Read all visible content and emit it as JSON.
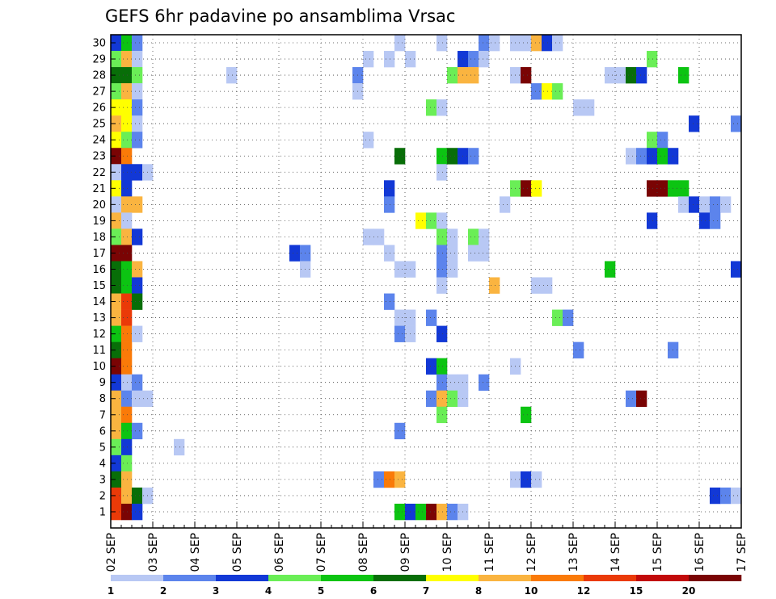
{
  "chart_data": {
    "type": "heatmap",
    "title": "GEFS 6hr padavine po ansamblima Vrsac",
    "xlabel": "",
    "ylabel": "",
    "x_ticks": [
      "02 SEP",
      "03 SEP",
      "04 SEP",
      "05 SEP",
      "06 SEP",
      "07 SEP",
      "08 SEP",
      "09 SEP",
      "10 SEP",
      "11 SEP",
      "12 SEP",
      "13 SEP",
      "14 SEP",
      "15 SEP",
      "16 SEP",
      "17 SEP"
    ],
    "x_unit": "6-hour step from 02 SEP 00Z",
    "x_range_steps": [
      0,
      60
    ],
    "y_ticks": [
      "1",
      "2",
      "3",
      "4",
      "5",
      "6",
      "7",
      "8",
      "9",
      "10",
      "11",
      "12",
      "13",
      "14",
      "15",
      "16",
      "17",
      "18",
      "19",
      "20",
      "21",
      "22",
      "23",
      "24",
      "25",
      "26",
      "27",
      "28",
      "29",
      "30"
    ],
    "y_range": [
      0,
      30
    ],
    "grid": true,
    "legend_placement": "bottom",
    "legend_labels": [
      "1",
      "2",
      "3",
      "4",
      "5",
      "6",
      "7",
      "8",
      "10",
      "12",
      "15",
      "20"
    ],
    "legend_colors": [
      "#b8c8f4",
      "#5c84ec",
      "#1238d6",
      "#6aee56",
      "#0cc412",
      "#086e08",
      "#ffff00",
      "#fab440",
      "#fa7a08",
      "#ea3a08",
      "#c20a0a",
      "#7a0404"
    ],
    "class_colors": [
      "#ffffff",
      "#b8c8f4",
      "#5c84ec",
      "#1238d6",
      "#6aee56",
      "#0cc412",
      "#086e08",
      "#ffff00",
      "#fab440",
      "#fa7a08",
      "#ea3a08",
      "#c20a0a",
      "#7a0404"
    ],
    "cells": [
      {
        "m": 30,
        "s": 0,
        "c": 3
      },
      {
        "m": 30,
        "s": 1,
        "c": 5
      },
      {
        "m": 30,
        "s": 2,
        "c": 2
      },
      {
        "m": 30,
        "s": 27,
        "c": 1
      },
      {
        "m": 30,
        "s": 31,
        "c": 1
      },
      {
        "m": 30,
        "s": 35,
        "c": 2
      },
      {
        "m": 30,
        "s": 36,
        "c": 1
      },
      {
        "m": 30,
        "s": 38,
        "c": 1
      },
      {
        "m": 30,
        "s": 39,
        "c": 1
      },
      {
        "m": 30,
        "s": 40,
        "c": 8
      },
      {
        "m": 30,
        "s": 41,
        "c": 3
      },
      {
        "m": 30,
        "s": 42,
        "c": 1
      },
      {
        "m": 29,
        "s": 0,
        "c": 4
      },
      {
        "m": 29,
        "s": 1,
        "c": 8
      },
      {
        "m": 29,
        "s": 2,
        "c": 1
      },
      {
        "m": 29,
        "s": 24,
        "c": 1
      },
      {
        "m": 29,
        "s": 26,
        "c": 1
      },
      {
        "m": 29,
        "s": 28,
        "c": 1
      },
      {
        "m": 29,
        "s": 33,
        "c": 3
      },
      {
        "m": 29,
        "s": 34,
        "c": 2
      },
      {
        "m": 29,
        "s": 35,
        "c": 1
      },
      {
        "m": 29,
        "s": 51,
        "c": 4
      },
      {
        "m": 28,
        "s": 0,
        "c": 6
      },
      {
        "m": 28,
        "s": 1,
        "c": 6
      },
      {
        "m": 28,
        "s": 2,
        "c": 4
      },
      {
        "m": 28,
        "s": 11,
        "c": 1
      },
      {
        "m": 28,
        "s": 23,
        "c": 2
      },
      {
        "m": 28,
        "s": 32,
        "c": 4
      },
      {
        "m": 28,
        "s": 33,
        "c": 8
      },
      {
        "m": 28,
        "s": 34,
        "c": 8
      },
      {
        "m": 28,
        "s": 38,
        "c": 1
      },
      {
        "m": 28,
        "s": 39,
        "c": 12
      },
      {
        "m": 28,
        "s": 47,
        "c": 1
      },
      {
        "m": 28,
        "s": 48,
        "c": 1
      },
      {
        "m": 28,
        "s": 49,
        "c": 6
      },
      {
        "m": 28,
        "s": 50,
        "c": 3
      },
      {
        "m": 28,
        "s": 54,
        "c": 5
      },
      {
        "m": 27,
        "s": 0,
        "c": 4
      },
      {
        "m": 27,
        "s": 1,
        "c": 8
      },
      {
        "m": 27,
        "s": 2,
        "c": 1
      },
      {
        "m": 27,
        "s": 23,
        "c": 1
      },
      {
        "m": 27,
        "s": 40,
        "c": 2
      },
      {
        "m": 27,
        "s": 41,
        "c": 7
      },
      {
        "m": 27,
        "s": 42,
        "c": 4
      },
      {
        "m": 26,
        "s": 0,
        "c": 7
      },
      {
        "m": 26,
        "s": 1,
        "c": 7
      },
      {
        "m": 26,
        "s": 2,
        "c": 2
      },
      {
        "m": 26,
        "s": 30,
        "c": 4
      },
      {
        "m": 26,
        "s": 31,
        "c": 1
      },
      {
        "m": 26,
        "s": 44,
        "c": 1
      },
      {
        "m": 26,
        "s": 45,
        "c": 1
      },
      {
        "m": 25,
        "s": 0,
        "c": 8
      },
      {
        "m": 25,
        "s": 1,
        "c": 7
      },
      {
        "m": 25,
        "s": 2,
        "c": 1
      },
      {
        "m": 25,
        "s": 55,
        "c": 3
      },
      {
        "m": 25,
        "s": 59,
        "c": 2
      },
      {
        "m": 25,
        "s": 60,
        "c": 1
      },
      {
        "m": 24,
        "s": 0,
        "c": 7
      },
      {
        "m": 24,
        "s": 1,
        "c": 4
      },
      {
        "m": 24,
        "s": 2,
        "c": 2
      },
      {
        "m": 24,
        "s": 24,
        "c": 1
      },
      {
        "m": 24,
        "s": 51,
        "c": 4
      },
      {
        "m": 24,
        "s": 52,
        "c": 2
      },
      {
        "m": 23,
        "s": 0,
        "c": 12
      },
      {
        "m": 23,
        "s": 1,
        "c": 9
      },
      {
        "m": 23,
        "s": 27,
        "c": 6
      },
      {
        "m": 23,
        "s": 31,
        "c": 5
      },
      {
        "m": 23,
        "s": 32,
        "c": 6
      },
      {
        "m": 23,
        "s": 33,
        "c": 3
      },
      {
        "m": 23,
        "s": 34,
        "c": 2
      },
      {
        "m": 23,
        "s": 49,
        "c": 1
      },
      {
        "m": 23,
        "s": 50,
        "c": 2
      },
      {
        "m": 23,
        "s": 51,
        "c": 3
      },
      {
        "m": 23,
        "s": 52,
        "c": 5
      },
      {
        "m": 23,
        "s": 53,
        "c": 3
      },
      {
        "m": 22,
        "s": 0,
        "c": 1
      },
      {
        "m": 22,
        "s": 1,
        "c": 3
      },
      {
        "m": 22,
        "s": 2,
        "c": 3
      },
      {
        "m": 22,
        "s": 3,
        "c": 1
      },
      {
        "m": 22,
        "s": 31,
        "c": 1
      },
      {
        "m": 21,
        "s": 0,
        "c": 7
      },
      {
        "m": 21,
        "s": 1,
        "c": 3
      },
      {
        "m": 21,
        "s": 26,
        "c": 3
      },
      {
        "m": 21,
        "s": 38,
        "c": 4
      },
      {
        "m": 21,
        "s": 39,
        "c": 12
      },
      {
        "m": 21,
        "s": 40,
        "c": 7
      },
      {
        "m": 21,
        "s": 51,
        "c": 12
      },
      {
        "m": 21,
        "s": 52,
        "c": 12
      },
      {
        "m": 21,
        "s": 53,
        "c": 5
      },
      {
        "m": 21,
        "s": 54,
        "c": 5
      },
      {
        "m": 20,
        "s": 0,
        "c": 1
      },
      {
        "m": 20,
        "s": 1,
        "c": 8
      },
      {
        "m": 20,
        "s": 2,
        "c": 8
      },
      {
        "m": 20,
        "s": 26,
        "c": 2
      },
      {
        "m": 20,
        "s": 37,
        "c": 1
      },
      {
        "m": 20,
        "s": 54,
        "c": 1
      },
      {
        "m": 20,
        "s": 55,
        "c": 3
      },
      {
        "m": 20,
        "s": 56,
        "c": 1
      },
      {
        "m": 20,
        "s": 57,
        "c": 2
      },
      {
        "m": 20,
        "s": 58,
        "c": 1
      },
      {
        "m": 19,
        "s": 0,
        "c": 8
      },
      {
        "m": 19,
        "s": 1,
        "c": 1
      },
      {
        "m": 19,
        "s": 29,
        "c": 7
      },
      {
        "m": 19,
        "s": 30,
        "c": 4
      },
      {
        "m": 19,
        "s": 31,
        "c": 1
      },
      {
        "m": 19,
        "s": 51,
        "c": 3
      },
      {
        "m": 19,
        "s": 56,
        "c": 3
      },
      {
        "m": 19,
        "s": 57,
        "c": 2
      },
      {
        "m": 18,
        "s": 0,
        "c": 4
      },
      {
        "m": 18,
        "s": 1,
        "c": 8
      },
      {
        "m": 18,
        "s": 2,
        "c": 3
      },
      {
        "m": 18,
        "s": 24,
        "c": 1
      },
      {
        "m": 18,
        "s": 25,
        "c": 1
      },
      {
        "m": 18,
        "s": 31,
        "c": 4
      },
      {
        "m": 18,
        "s": 32,
        "c": 1
      },
      {
        "m": 18,
        "s": 34,
        "c": 4
      },
      {
        "m": 18,
        "s": 35,
        "c": 1
      },
      {
        "m": 17,
        "s": 0,
        "c": 12
      },
      {
        "m": 17,
        "s": 1,
        "c": 12
      },
      {
        "m": 17,
        "s": 17,
        "c": 3
      },
      {
        "m": 17,
        "s": 18,
        "c": 2
      },
      {
        "m": 17,
        "s": 26,
        "c": 1
      },
      {
        "m": 17,
        "s": 31,
        "c": 2
      },
      {
        "m": 17,
        "s": 32,
        "c": 1
      },
      {
        "m": 17,
        "s": 34,
        "c": 1
      },
      {
        "m": 17,
        "s": 35,
        "c": 1
      },
      {
        "m": 16,
        "s": 0,
        "c": 6
      },
      {
        "m": 16,
        "s": 1,
        "c": 5
      },
      {
        "m": 16,
        "s": 2,
        "c": 8
      },
      {
        "m": 16,
        "s": 18,
        "c": 1
      },
      {
        "m": 16,
        "s": 27,
        "c": 1
      },
      {
        "m": 16,
        "s": 28,
        "c": 1
      },
      {
        "m": 16,
        "s": 31,
        "c": 2
      },
      {
        "m": 16,
        "s": 32,
        "c": 1
      },
      {
        "m": 16,
        "s": 47,
        "c": 5
      },
      {
        "m": 16,
        "s": 59,
        "c": 3
      },
      {
        "m": 16,
        "s": 60,
        "c": 2
      },
      {
        "m": 15,
        "s": 0,
        "c": 6
      },
      {
        "m": 15,
        "s": 1,
        "c": 5
      },
      {
        "m": 15,
        "s": 2,
        "c": 3
      },
      {
        "m": 15,
        "s": 31,
        "c": 1
      },
      {
        "m": 15,
        "s": 36,
        "c": 8
      },
      {
        "m": 15,
        "s": 40,
        "c": 1
      },
      {
        "m": 15,
        "s": 41,
        "c": 1
      },
      {
        "m": 14,
        "s": 0,
        "c": 8
      },
      {
        "m": 14,
        "s": 1,
        "c": 10
      },
      {
        "m": 14,
        "s": 2,
        "c": 6
      },
      {
        "m": 14,
        "s": 26,
        "c": 2
      },
      {
        "m": 13,
        "s": 0,
        "c": 8
      },
      {
        "m": 13,
        "s": 1,
        "c": 10
      },
      {
        "m": 13,
        "s": 27,
        "c": 1
      },
      {
        "m": 13,
        "s": 28,
        "c": 1
      },
      {
        "m": 13,
        "s": 30,
        "c": 2
      },
      {
        "m": 13,
        "s": 42,
        "c": 4
      },
      {
        "m": 13,
        "s": 43,
        "c": 2
      },
      {
        "m": 12,
        "s": 0,
        "c": 5
      },
      {
        "m": 12,
        "s": 1,
        "c": 9
      },
      {
        "m": 12,
        "s": 2,
        "c": 1
      },
      {
        "m": 12,
        "s": 27,
        "c": 2
      },
      {
        "m": 12,
        "s": 28,
        "c": 1
      },
      {
        "m": 12,
        "s": 31,
        "c": 3
      },
      {
        "m": 11,
        "s": 0,
        "c": 6
      },
      {
        "m": 11,
        "s": 1,
        "c": 9
      },
      {
        "m": 11,
        "s": 44,
        "c": 2
      },
      {
        "m": 11,
        "s": 53,
        "c": 2
      },
      {
        "m": 10,
        "s": 0,
        "c": 12
      },
      {
        "m": 10,
        "s": 1,
        "c": 9
      },
      {
        "m": 10,
        "s": 30,
        "c": 3
      },
      {
        "m": 10,
        "s": 31,
        "c": 5
      },
      {
        "m": 10,
        "s": 38,
        "c": 1
      },
      {
        "m": 9,
        "s": 0,
        "c": 3
      },
      {
        "m": 9,
        "s": 1,
        "c": 1
      },
      {
        "m": 9,
        "s": 2,
        "c": 2
      },
      {
        "m": 9,
        "s": 31,
        "c": 2
      },
      {
        "m": 9,
        "s": 32,
        "c": 1
      },
      {
        "m": 9,
        "s": 33,
        "c": 1
      },
      {
        "m": 9,
        "s": 35,
        "c": 2
      },
      {
        "m": 8,
        "s": 0,
        "c": 8
      },
      {
        "m": 8,
        "s": 1,
        "c": 2
      },
      {
        "m": 8,
        "s": 2,
        "c": 1
      },
      {
        "m": 8,
        "s": 3,
        "c": 1
      },
      {
        "m": 8,
        "s": 30,
        "c": 2
      },
      {
        "m": 8,
        "s": 31,
        "c": 8
      },
      {
        "m": 8,
        "s": 32,
        "c": 4
      },
      {
        "m": 8,
        "s": 33,
        "c": 1
      },
      {
        "m": 8,
        "s": 49,
        "c": 2
      },
      {
        "m": 8,
        "s": 50,
        "c": 12
      },
      {
        "m": 7,
        "s": 0,
        "c": 8
      },
      {
        "m": 7,
        "s": 1,
        "c": 9
      },
      {
        "m": 7,
        "s": 31,
        "c": 4
      },
      {
        "m": 7,
        "s": 39,
        "c": 5
      },
      {
        "m": 6,
        "s": 0,
        "c": 8
      },
      {
        "m": 6,
        "s": 1,
        "c": 5
      },
      {
        "m": 6,
        "s": 2,
        "c": 2
      },
      {
        "m": 6,
        "s": 27,
        "c": 2
      },
      {
        "m": 5,
        "s": 0,
        "c": 4
      },
      {
        "m": 5,
        "s": 1,
        "c": 3
      },
      {
        "m": 5,
        "s": 6,
        "c": 1
      },
      {
        "m": 5,
        "s": 60,
        "c": 2
      },
      {
        "m": 4,
        "s": 0,
        "c": 3
      },
      {
        "m": 4,
        "s": 1,
        "c": 4
      },
      {
        "m": 3,
        "s": 0,
        "c": 6
      },
      {
        "m": 3,
        "s": 1,
        "c": 8
      },
      {
        "m": 3,
        "s": 25,
        "c": 2
      },
      {
        "m": 3,
        "s": 26,
        "c": 9
      },
      {
        "m": 3,
        "s": 27,
        "c": 8
      },
      {
        "m": 3,
        "s": 38,
        "c": 1
      },
      {
        "m": 3,
        "s": 39,
        "c": 3
      },
      {
        "m": 3,
        "s": 40,
        "c": 1
      },
      {
        "m": 2,
        "s": 0,
        "c": 10
      },
      {
        "m": 2,
        "s": 1,
        "c": 8
      },
      {
        "m": 2,
        "s": 2,
        "c": 6
      },
      {
        "m": 2,
        "s": 3,
        "c": 1
      },
      {
        "m": 2,
        "s": 57,
        "c": 3
      },
      {
        "m": 2,
        "s": 58,
        "c": 2
      },
      {
        "m": 2,
        "s": 59,
        "c": 1
      },
      {
        "m": 1,
        "s": 0,
        "c": 10
      },
      {
        "m": 1,
        "s": 1,
        "c": 12
      },
      {
        "m": 1,
        "s": 2,
        "c": 3
      },
      {
        "m": 1,
        "s": 27,
        "c": 5
      },
      {
        "m": 1,
        "s": 28,
        "c": 3
      },
      {
        "m": 1,
        "s": 29,
        "c": 5
      },
      {
        "m": 1,
        "s": 30,
        "c": 12
      },
      {
        "m": 1,
        "s": 31,
        "c": 8
      },
      {
        "m": 1,
        "s": 32,
        "c": 2
      },
      {
        "m": 1,
        "s": 33,
        "c": 1
      }
    ]
  }
}
